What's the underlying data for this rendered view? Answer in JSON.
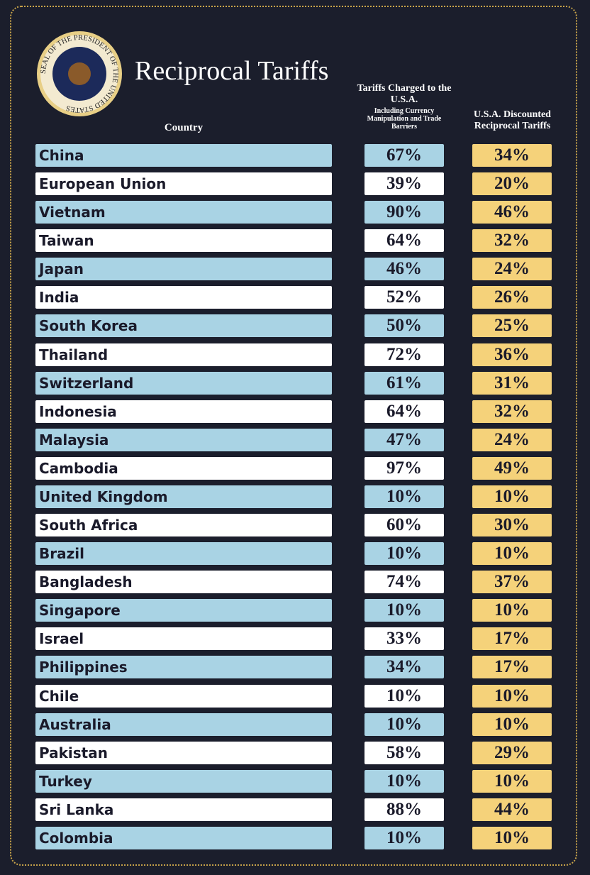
{
  "header": {
    "title": "Reciprocal Tariffs",
    "seal_text": "SEAL OF THE PRESIDENT OF THE UNITED STATES"
  },
  "columns": {
    "country": "Country",
    "charged": "Tariffs Charged to the U.S.A.",
    "charged_note": "Including Currency Manipulation and Trade Barriers",
    "discounted": "U.S.A. Discounted Reciprocal Tariffs"
  },
  "table": {
    "rows": [
      [
        "China",
        "67%",
        "34%"
      ],
      [
        "European Union",
        "39%",
        "20%"
      ],
      [
        "Vietnam",
        "90%",
        "46%"
      ],
      [
        "Taiwan",
        "64%",
        "32%"
      ],
      [
        "Japan",
        "46%",
        "24%"
      ],
      [
        "India",
        "52%",
        "26%"
      ],
      [
        "South Korea",
        "50%",
        "25%"
      ],
      [
        "Thailand",
        "72%",
        "36%"
      ],
      [
        "Switzerland",
        "61%",
        "31%"
      ],
      [
        "Indonesia",
        "64%",
        "32%"
      ],
      [
        "Malaysia",
        "47%",
        "24%"
      ],
      [
        "Cambodia",
        "97%",
        "49%"
      ],
      [
        "United Kingdom",
        "10%",
        "10%"
      ],
      [
        "South Africa",
        "60%",
        "30%"
      ],
      [
        "Brazil",
        "10%",
        "10%"
      ],
      [
        "Bangladesh",
        "74%",
        "37%"
      ],
      [
        "Singapore",
        "10%",
        "10%"
      ],
      [
        "Israel",
        "33%",
        "17%"
      ],
      [
        "Philippines",
        "34%",
        "17%"
      ],
      [
        "Chile",
        "10%",
        "10%"
      ],
      [
        "Australia",
        "10%",
        "10%"
      ],
      [
        "Pakistan",
        "58%",
        "29%"
      ],
      [
        "Turkey",
        "10%",
        "10%"
      ],
      [
        "Sri Lanka",
        "88%",
        "44%"
      ],
      [
        "Colombia",
        "10%",
        "10%"
      ]
    ]
  }
}
